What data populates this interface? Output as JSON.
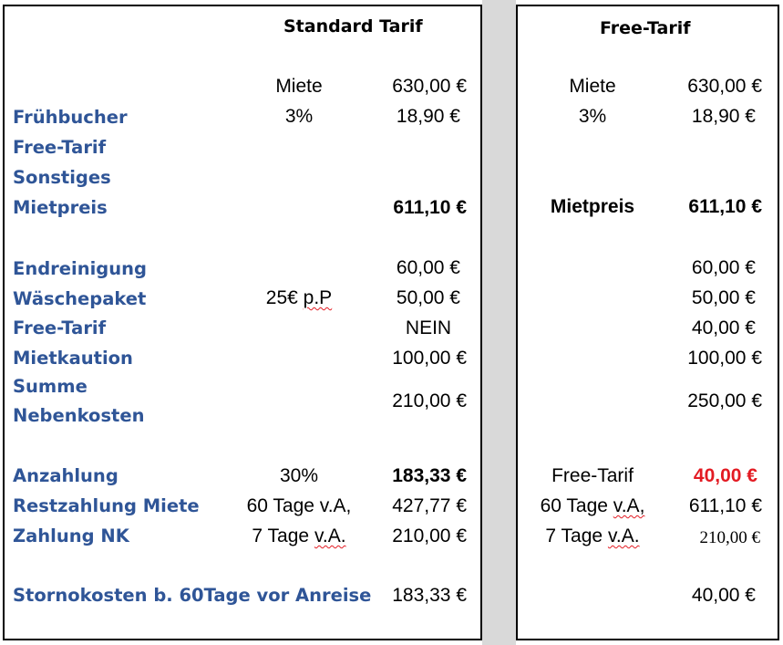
{
  "headers": {
    "standard": "Standard Tarif",
    "free": "Free-Tarif"
  },
  "labels": {
    "fruehbucher": "Frühbucher",
    "free_tarif_1": "Free-Tarif",
    "sonstiges": "Sonstiges",
    "mietpreis": "Mietpreis",
    "endreinigung": "Endreinigung",
    "waeschepaket": "Wäschepaket",
    "free_tarif_2": "Free-Tarif",
    "mietkaution": "Mietkaution",
    "summe": "Summe",
    "nebenkosten": "Nebenkosten",
    "anzahlung": "Anzahlung",
    "restzahlung": "Restzahlung Miete",
    "zahlung_nk": "Zahlung NK",
    "storno": "Stornokosten b. 60Tage vor Anreise"
  },
  "standard": {
    "miete_label": "Miete",
    "miete": "630,00 €",
    "fruehbucher_pct": "3%",
    "fruehbucher": "18,90 €",
    "mietpreis": "611,10 €",
    "endreinigung": "60,00 €",
    "waesche_note_a": "25€ ",
    "waesche_note_b": "p.P",
    "waeschepaket": "50,00 €",
    "free_tarif": "NEIN",
    "mietkaution": "100,00 €",
    "nebenkosten": "210,00 €",
    "anzahlung_pct": "30%",
    "anzahlung": "183,33 €",
    "restzahlung_note": "60 Tage v.A,",
    "restzahlung": "427,77 €",
    "zahlung_nk_note_a": "7 Tage ",
    "zahlung_nk_note_b": "v.A.",
    "zahlung_nk": "210,00 €",
    "storno": "183,33 €"
  },
  "free": {
    "miete_label": "Miete",
    "miete": "630,00 €",
    "fruehbucher_pct": "3%",
    "fruehbucher": "18,90 €",
    "mietpreis_label": "Mietpreis",
    "mietpreis": "611,10 €",
    "endreinigung": "60,00 €",
    "waeschepaket": "50,00 €",
    "free_tarif": "40,00 €",
    "mietkaution": "100,00 €",
    "nebenkosten": "250,00 €",
    "anzahlung_note": "Free-Tarif",
    "anzahlung": "40,00 €",
    "restzahlung_note_a": "60 Tage ",
    "restzahlung_note_b": "v.A,",
    "restzahlung": "611,10 €",
    "zahlung_nk_note_a": "7 Tage ",
    "zahlung_nk_note_b": "v.A.",
    "zahlung_nk": "210,00 €",
    "storno": "40,00 €"
  },
  "colors": {
    "label_blue": "#2f5597",
    "highlight_red": "#e31b23",
    "gap_gray": "#d9d9d9"
  }
}
